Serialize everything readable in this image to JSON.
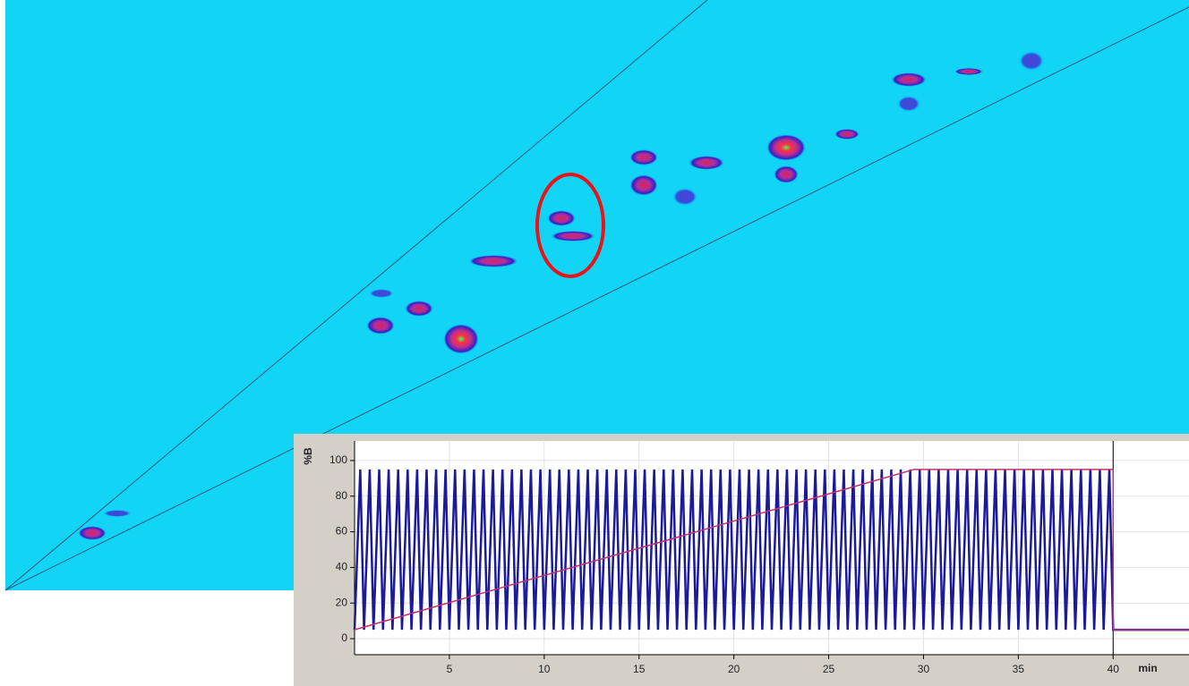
{
  "chart_data": {
    "type": "line",
    "xlabel": "min",
    "ylabel": "%B",
    "xlim": [
      0,
      44
    ],
    "ylim": [
      -9,
      111
    ],
    "xticks": [
      5,
      10,
      15,
      20,
      25,
      30,
      35,
      40
    ],
    "yticks": [
      0,
      20,
      40,
      60,
      80,
      100
    ],
    "grid": true,
    "marker_x": 40,
    "series": [
      {
        "color": "#1a1a9c",
        "x": [
          0,
          0.3,
          0.5,
          0.8,
          1,
          1.3,
          1.5,
          1.8,
          2,
          2.3,
          2.5,
          2.8,
          3,
          3.3,
          3.5,
          3.8,
          4,
          4.3,
          4.5,
          4.8,
          5,
          5.3,
          5.5,
          5.8,
          6,
          6.3,
          6.5,
          6.8,
          7,
          7.3,
          7.5,
          7.8,
          8,
          8.3,
          8.5,
          8.8,
          9,
          9.3,
          9.5,
          9.8,
          10,
          10.3,
          10.5,
          10.8,
          11,
          11.3,
          11.5,
          11.8,
          12,
          12.3,
          12.5,
          12.8,
          13,
          13.3,
          13.5,
          13.8,
          14,
          14.3,
          14.5,
          14.8,
          15,
          15.3,
          15.5,
          15.8,
          16,
          16.3,
          16.5,
          16.8,
          17,
          17.3,
          17.5,
          17.8,
          18,
          18.3,
          18.5,
          18.8,
          19,
          19.3,
          19.5,
          19.8,
          20,
          20.3,
          20.5,
          20.8,
          21,
          21.3,
          21.5,
          21.8,
          22,
          22.3,
          22.5,
          22.8,
          23,
          23.3,
          23.5,
          23.8,
          24,
          24.3,
          24.5,
          24.8,
          25,
          25.3,
          25.5,
          25.8,
          26,
          26.3,
          26.5,
          26.8,
          27,
          27.3,
          27.5,
          27.8,
          28,
          28.3,
          28.5,
          28.8,
          29,
          29.3,
          29.5,
          29.8,
          30,
          30.3,
          30.5,
          30.8,
          31,
          31.3,
          31.5,
          31.8,
          32,
          32.3,
          32.5,
          32.8,
          33,
          33.3,
          33.5,
          33.8,
          34,
          34.3,
          34.5,
          34.8,
          35,
          35.3,
          35.5,
          35.8,
          36,
          36.3,
          36.5,
          36.8,
          37,
          37.3,
          37.5,
          37.8,
          38,
          38.3,
          38.5,
          38.8,
          39,
          39.3,
          39.5,
          39.8,
          40,
          44
        ],
        "values": [
          5,
          95,
          5,
          95,
          5,
          95,
          5,
          95,
          5,
          95,
          5,
          95,
          5,
          95,
          5,
          95,
          5,
          95,
          5,
          95,
          5,
          95,
          5,
          95,
          5,
          95,
          5,
          95,
          5,
          95,
          5,
          95,
          5,
          95,
          5,
          95,
          5,
          95,
          5,
          95,
          5,
          95,
          5,
          95,
          5,
          95,
          5,
          95,
          5,
          95,
          5,
          95,
          5,
          95,
          5,
          95,
          5,
          95,
          5,
          95,
          5,
          95,
          5,
          95,
          5,
          95,
          5,
          95,
          5,
          95,
          5,
          95,
          5,
          95,
          5,
          95,
          5,
          95,
          5,
          95,
          5,
          95,
          5,
          95,
          5,
          95,
          5,
          95,
          5,
          95,
          5,
          95,
          5,
          95,
          5,
          95,
          5,
          95,
          5,
          95,
          5,
          95,
          5,
          95,
          5,
          95,
          5,
          95,
          5,
          95,
          5,
          95,
          5,
          95,
          5,
          95,
          5,
          95,
          5,
          95,
          5,
          95,
          5,
          95,
          5,
          95,
          5,
          95,
          5,
          95,
          5,
          95,
          5,
          95,
          5,
          95,
          5,
          95,
          5,
          95,
          5,
          95,
          5,
          95,
          5,
          95,
          5,
          95,
          5,
          95,
          5,
          95,
          5,
          95,
          5,
          95,
          5,
          95,
          5,
          95,
          5,
          5
        ]
      },
      {
        "color": "#c8306a",
        "x": [
          0,
          29.5,
          40,
          40,
          44
        ],
        "values": [
          5,
          95,
          95,
          5,
          5
        ]
      }
    ]
  }
}
